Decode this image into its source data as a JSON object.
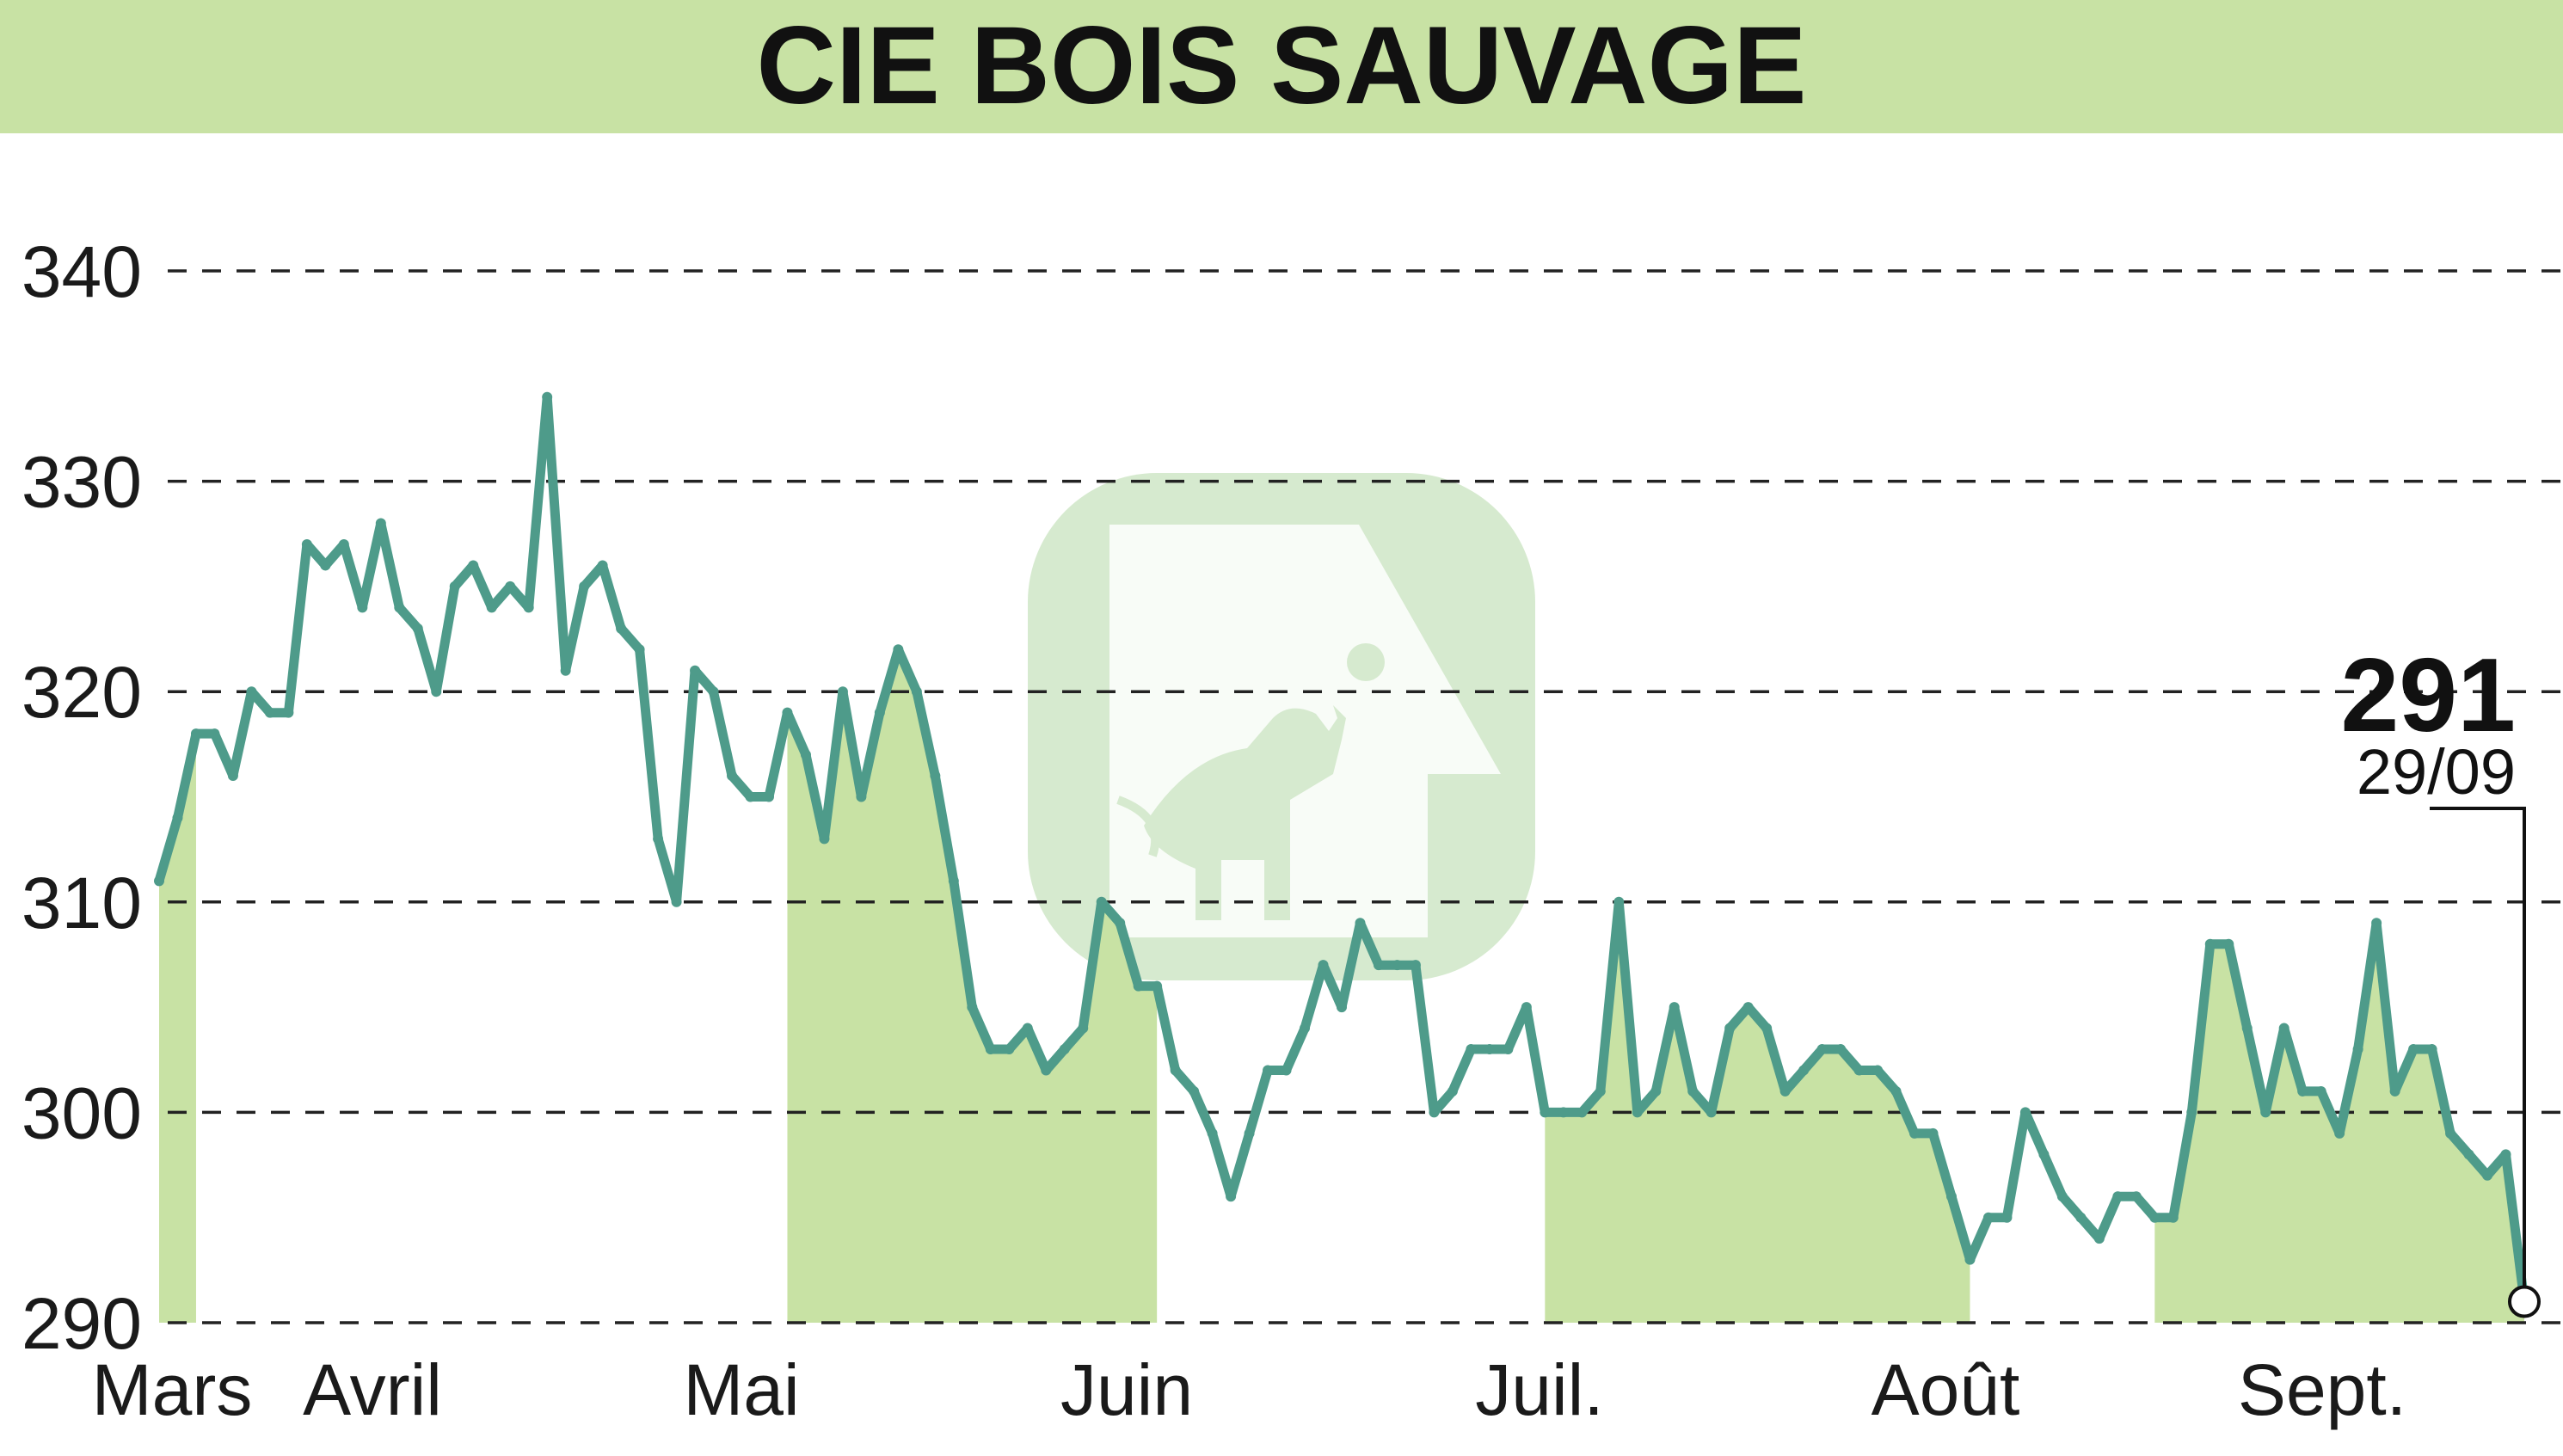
{
  "chart_data": {
    "type": "line",
    "title": "CIE BOIS SAUVAGE",
    "ylim": [
      290,
      340
    ],
    "yticks": [
      290,
      300,
      310,
      320,
      330,
      340
    ],
    "grid": "horizontal-dashed",
    "months": [
      "Mars",
      "Avril",
      "Mai",
      "Juin",
      "Juil.",
      "Août",
      "Sept."
    ],
    "shaded_months": [
      "Mars",
      "Mai",
      "Juil.",
      "Sept."
    ],
    "last_value": "291",
    "last_date": "29/09",
    "series": [
      {
        "values": [
          311,
          314,
          318,
          318,
          316,
          320,
          319,
          319,
          327,
          326,
          327,
          324,
          328,
          324,
          323,
          320,
          325,
          326,
          324,
          325,
          324,
          334,
          321,
          325,
          326,
          323,
          322,
          313,
          310,
          321,
          320,
          316,
          315,
          315,
          319,
          317,
          313,
          320,
          315,
          319,
          322,
          320,
          316,
          311,
          305,
          303,
          303,
          304,
          302,
          303,
          304,
          310,
          309,
          306,
          306,
          302,
          301,
          299,
          296,
          299,
          302,
          302,
          304,
          307,
          305,
          309,
          307,
          307,
          307,
          300,
          301,
          303,
          303,
          303,
          305,
          300,
          300,
          300,
          301,
          310,
          300,
          301,
          305,
          301,
          300,
          304,
          305,
          304,
          301,
          302,
          303,
          303,
          302,
          302,
          301,
          299,
          299,
          296,
          293,
          295,
          295,
          300,
          298,
          296,
          295,
          294,
          296,
          296,
          295,
          295,
          300,
          308,
          308,
          304,
          300,
          304,
          301,
          301,
          299,
          303,
          309,
          301,
          303,
          303,
          299,
          298,
          297,
          298,
          291
        ]
      }
    ]
  },
  "colors": {
    "line": "#4e9b8a",
    "fill": "#c8e2a4",
    "header": "#c8e2a4",
    "watermark": "#b5d9a8",
    "grid": "#222222"
  },
  "watermark_icon": "bull-logo-icon"
}
